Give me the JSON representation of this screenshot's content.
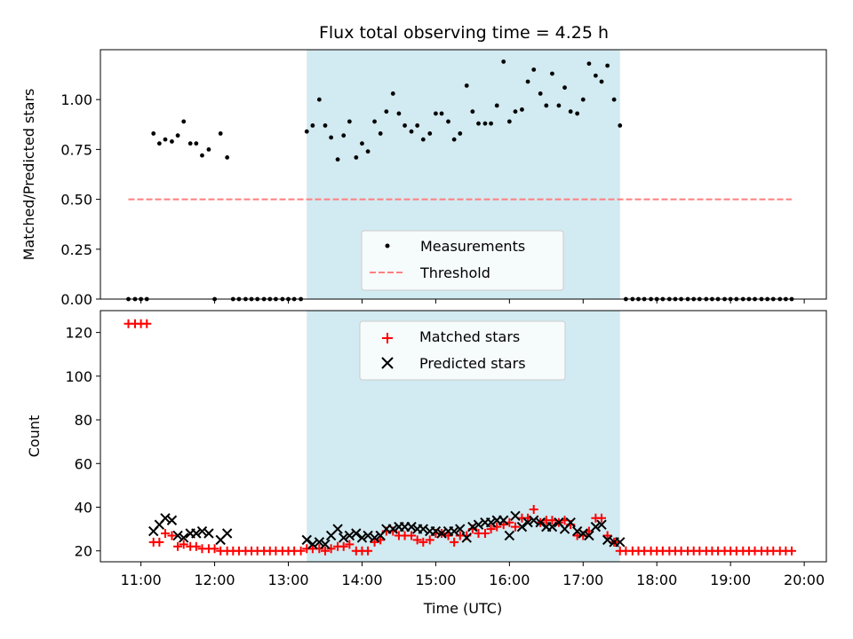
{
  "title": "Flux total observing time = 4.25 h",
  "colors": {
    "shade": "#add8e6",
    "measurement": "#000000",
    "threshold": "#ff7f7f",
    "matched": "#ff0000",
    "predicted": "#000000"
  },
  "chart_data": [
    {
      "type": "scatter",
      "panel": "top",
      "ylabel": "Matched/Predicted stars",
      "xlim": [
        10.45,
        20.3
      ],
      "ylim": [
        0,
        1.25
      ],
      "yticks": [
        0,
        0.25,
        0.5,
        0.75,
        1.0
      ],
      "ytick_labels": [
        "0.00",
        "0.25",
        "0.50",
        "0.75",
        "1.00"
      ],
      "shaded_region": {
        "x_start": 13.25,
        "x_end": 17.5
      },
      "legend": {
        "position": "lower center",
        "entries": [
          "Measurements",
          "Threshold"
        ]
      },
      "threshold": {
        "name": "Threshold",
        "x": [
          10.83,
          19.83
        ],
        "y": [
          0.5,
          0.5
        ],
        "style": "dashed"
      },
      "series": [
        {
          "name": "Measurements",
          "marker": "dot",
          "x": [
            10.83,
            10.92,
            11.0,
            11.08,
            11.17,
            11.25,
            11.33,
            11.42,
            11.5,
            11.58,
            11.67,
            11.75,
            11.83,
            11.92,
            12.0,
            12.08,
            12.17,
            12.25,
            12.33,
            12.42,
            12.5,
            12.58,
            12.67,
            12.75,
            12.83,
            12.92,
            13.0,
            13.08,
            13.17,
            13.25,
            13.33,
            13.42,
            13.5,
            13.58,
            13.67,
            13.75,
            13.83,
            13.92,
            14.0,
            14.08,
            14.17,
            14.25,
            14.33,
            14.42,
            14.5,
            14.58,
            14.67,
            14.75,
            14.83,
            14.92,
            15.0,
            15.08,
            15.17,
            15.25,
            15.33,
            15.42,
            15.5,
            15.58,
            15.67,
            15.75,
            15.83,
            15.92,
            16.0,
            16.08,
            16.17,
            16.25,
            16.33,
            16.42,
            16.5,
            16.58,
            16.67,
            16.75,
            16.83,
            16.92,
            17.0,
            17.08,
            17.17,
            17.25,
            17.33,
            17.42,
            17.5,
            17.58,
            17.67,
            17.75,
            17.83,
            17.92,
            18.0,
            18.08,
            18.17,
            18.25,
            18.33,
            18.42,
            18.5,
            18.58,
            18.67,
            18.75,
            18.83,
            18.92,
            19.0,
            19.08,
            19.17,
            19.25,
            19.33,
            19.42,
            19.5,
            19.58,
            19.67,
            19.75,
            19.83
          ],
          "y": [
            0,
            0,
            0,
            0,
            0.83,
            0.78,
            0.8,
            0.79,
            0.82,
            0.89,
            0.78,
            0.78,
            0.72,
            0.75,
            0,
            0.83,
            0.71,
            0,
            0,
            0,
            0,
            0,
            0,
            0,
            0,
            0,
            0,
            0,
            0,
            0.84,
            0.87,
            1.0,
            0.87,
            0.81,
            0.7,
            0.82,
            0.89,
            0.71,
            0.78,
            0.74,
            0.89,
            0.83,
            0.94,
            1.03,
            0.93,
            0.87,
            0.84,
            0.87,
            0.8,
            0.83,
            0.93,
            0.93,
            0.89,
            0.8,
            0.83,
            1.07,
            0.94,
            0.88,
            0.88,
            0.88,
            0.97,
            1.19,
            0.89,
            0.94,
            0.95,
            1.09,
            1.15,
            1.03,
            0.97,
            1.13,
            0.97,
            1.06,
            0.94,
            0.93,
            1.0,
            1.18,
            1.12,
            1.09,
            1.17,
            1.0,
            0.87,
            0,
            0,
            0,
            0,
            0,
            0,
            0,
            0,
            0,
            0,
            0,
            0,
            0,
            0,
            0,
            0,
            0,
            0,
            0,
            0,
            0,
            0,
            0,
            0,
            0,
            0,
            0,
            0
          ]
        }
      ]
    },
    {
      "type": "scatter",
      "panel": "bottom",
      "xlabel": "Time (UTC)",
      "ylabel": "Count",
      "xlim": [
        10.45,
        20.3
      ],
      "ylim": [
        15,
        130
      ],
      "yticks": [
        20,
        40,
        60,
        80,
        100,
        120
      ],
      "ytick_labels": [
        "20",
        "40",
        "60",
        "80",
        "100",
        "120"
      ],
      "xticks": [
        11,
        12,
        13,
        14,
        15,
        16,
        17,
        18,
        19,
        20
      ],
      "xtick_labels": [
        "11:00",
        "12:00",
        "13:00",
        "14:00",
        "15:00",
        "16:00",
        "17:00",
        "18:00",
        "19:00",
        "20:00"
      ],
      "shaded_region": {
        "x_start": 13.25,
        "x_end": 17.5
      },
      "legend": {
        "position": "upper center",
        "entries": [
          "Matched stars",
          "Predicted stars"
        ]
      },
      "series": [
        {
          "name": "Matched stars",
          "marker": "plus",
          "x": [
            10.83,
            10.92,
            11.0,
            11.08,
            11.17,
            11.25,
            11.33,
            11.42,
            11.5,
            11.58,
            11.67,
            11.75,
            11.83,
            11.92,
            12.0,
            12.08,
            12.17,
            12.25,
            12.33,
            12.42,
            12.5,
            12.58,
            12.67,
            12.75,
            12.83,
            12.92,
            13.0,
            13.08,
            13.17,
            13.25,
            13.33,
            13.42,
            13.5,
            13.58,
            13.67,
            13.75,
            13.83,
            13.92,
            14.0,
            14.08,
            14.17,
            14.25,
            14.33,
            14.42,
            14.5,
            14.58,
            14.67,
            14.75,
            14.83,
            14.92,
            15.0,
            15.08,
            15.17,
            15.25,
            15.33,
            15.42,
            15.5,
            15.58,
            15.67,
            15.75,
            15.83,
            15.92,
            16.0,
            16.08,
            16.17,
            16.25,
            16.33,
            16.42,
            16.5,
            16.58,
            16.67,
            16.75,
            16.83,
            16.92,
            17.0,
            17.08,
            17.17,
            17.25,
            17.33,
            17.42,
            17.5,
            17.58,
            17.67,
            17.75,
            17.83,
            17.92,
            18.0,
            18.08,
            18.17,
            18.25,
            18.33,
            18.42,
            18.5,
            18.58,
            18.67,
            18.75,
            18.83,
            18.92,
            19.0,
            19.08,
            19.17,
            19.25,
            19.33,
            19.42,
            19.5,
            19.58,
            19.67,
            19.75,
            19.83
          ],
          "y": [
            124,
            124,
            124,
            124,
            24,
            24,
            28,
            27,
            22,
            23,
            22,
            22,
            21,
            21,
            21,
            20,
            20,
            20,
            20,
            20,
            20,
            20,
            20,
            20,
            20,
            20,
            20,
            20,
            20,
            21,
            21,
            21,
            20,
            21,
            22,
            22,
            23,
            20,
            20,
            20,
            24,
            25,
            29,
            29,
            27,
            27,
            27,
            25,
            24,
            25,
            28,
            28,
            27,
            24,
            27,
            27,
            30,
            28,
            28,
            30,
            31,
            32,
            33,
            31,
            35,
            35,
            39,
            33,
            34,
            34,
            33,
            34,
            32,
            27,
            27,
            29,
            35,
            35,
            27,
            24,
            20,
            20,
            20,
            20,
            20,
            20,
            20,
            20,
            20,
            20,
            20,
            20,
            20,
            20,
            20,
            20,
            20,
            20,
            20,
            20,
            20,
            20,
            20,
            20,
            20,
            20,
            20,
            20,
            20
          ]
        },
        {
          "name": "Predicted stars",
          "marker": "x",
          "x": [
            11.17,
            11.25,
            11.33,
            11.42,
            11.5,
            11.58,
            11.67,
            11.75,
            11.83,
            11.92,
            12.08,
            12.17,
            13.25,
            13.33,
            13.42,
            13.5,
            13.58,
            13.67,
            13.75,
            13.83,
            13.92,
            14.0,
            14.08,
            14.17,
            14.25,
            14.33,
            14.42,
            14.5,
            14.58,
            14.67,
            14.75,
            14.83,
            14.92,
            15.0,
            15.08,
            15.17,
            15.25,
            15.33,
            15.42,
            15.5,
            15.58,
            15.67,
            15.75,
            15.83,
            15.92,
            16.0,
            16.08,
            16.17,
            16.25,
            16.33,
            16.42,
            16.5,
            16.58,
            16.67,
            16.75,
            16.83,
            16.92,
            17.0,
            17.08,
            17.17,
            17.25,
            17.33,
            17.42,
            17.5
          ],
          "y": [
            29,
            32,
            35,
            34,
            27,
            26,
            28,
            28,
            29,
            28,
            25,
            28,
            25,
            23,
            24,
            23,
            27,
            30,
            26,
            27,
            28,
            26,
            27,
            26,
            27,
            30,
            30,
            31,
            31,
            31,
            30,
            30,
            29,
            29,
            28,
            29,
            29,
            30,
            26,
            31,
            32,
            33,
            33,
            34,
            34,
            27,
            36,
            31,
            33,
            34,
            33,
            31,
            31,
            33,
            30,
            33,
            29,
            28,
            27,
            31,
            32,
            25,
            24,
            24
          ]
        }
      ]
    }
  ]
}
